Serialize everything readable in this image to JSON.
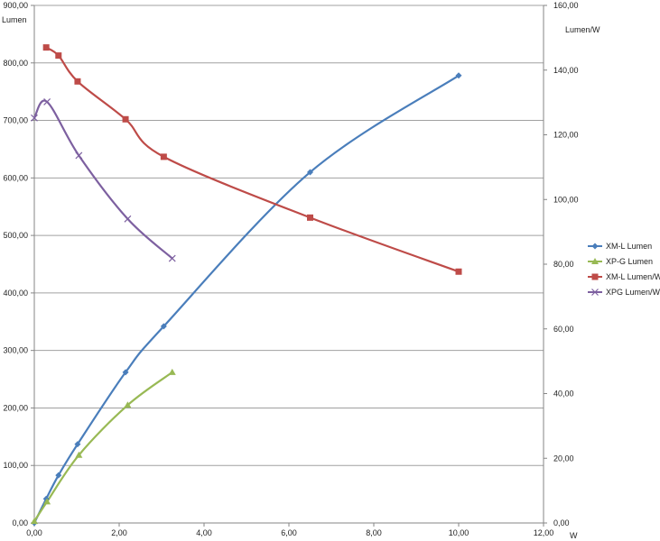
{
  "chart_data": {
    "type": "line",
    "title": "",
    "xlabel": "W",
    "ylabel": "Lumen",
    "y2label": "Lumen/W",
    "xlim": [
      0,
      12
    ],
    "ylim": [
      0,
      900
    ],
    "y2lim": [
      0,
      160
    ],
    "x_ticks": [
      "0,00",
      "2,00",
      "4,00",
      "6,00",
      "8,00",
      "10,00",
      "12,00"
    ],
    "y_ticks": [
      "0,00",
      "100,00",
      "200,00",
      "300,00",
      "400,00",
      "500,00",
      "600,00",
      "700,00",
      "800,00",
      "900,00"
    ],
    "y2_ticks": [
      "0,00",
      "20,00",
      "40,00",
      "60,00",
      "80,00",
      "100,00",
      "120,00",
      "140,00",
      "160,00"
    ],
    "grid": "horizontal",
    "legend_position": "right",
    "series": [
      {
        "name": "XM-L Lumen",
        "axis": "left",
        "color": "#4a7ebb",
        "marker": "diamond",
        "x": [
          0.0,
          0.28,
          0.57,
          1.02,
          2.15,
          3.05,
          6.5,
          10.0
        ],
        "y": [
          0,
          42,
          83,
          137,
          262,
          342,
          610,
          778
        ]
      },
      {
        "name": "XP-G Lumen",
        "axis": "left",
        "color": "#98b954",
        "marker": "triangle",
        "x": [
          0.0,
          0.3,
          1.05,
          2.2,
          3.25
        ],
        "y": [
          3,
          37,
          118,
          205,
          262
        ]
      },
      {
        "name": "XM-L Lumen/W",
        "axis": "right",
        "color": "#be4b48",
        "marker": "square",
        "x": [
          0.28,
          0.57,
          1.02,
          2.15,
          3.05,
          6.5,
          10.0
        ],
        "y": [
          147,
          144.5,
          136.5,
          124.8,
          113.2,
          94.4,
          77.7
        ]
      },
      {
        "name": "XPG Lumen/W",
        "axis": "right",
        "color": "#7d60a0",
        "marker": "x",
        "x": [
          0.0,
          0.3,
          1.05,
          2.2,
          3.25
        ],
        "y": [
          125.2,
          130.2,
          113.6,
          94.0,
          81.8
        ]
      }
    ]
  }
}
